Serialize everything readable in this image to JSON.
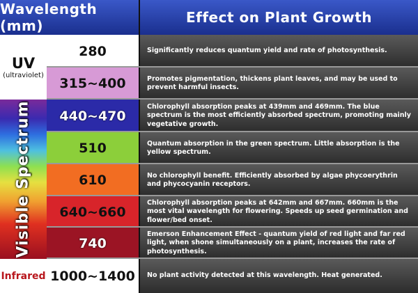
{
  "header": {
    "left": "Wavelength (mm)",
    "right": "Effect on Plant Growth"
  },
  "bands": {
    "uv_title": "UV",
    "uv_subtitle": "(ultraviolet)",
    "visible": "Visible Spectrum",
    "infrared": "Infrared"
  },
  "rows": [
    {
      "wavelength": "280",
      "color": "#ffffff",
      "effect": "Significantly reduces quantum yield and rate of photosynthesis."
    },
    {
      "wavelength": "315~400",
      "color": "#d79ad6",
      "effect": "Promotes pigmentation, thickens plant leaves, and may be used to prevent harmful insects."
    },
    {
      "wavelength": "440~470",
      "color": "#2b2aa8",
      "effect": "Chlorophyll absorption peaks at 439mm and 469mm. The blue spectrum is the most efficiently absorbed spectrum, promoting mainly vegetative growth."
    },
    {
      "wavelength": "510",
      "color": "#8ccf3a",
      "effect": "Quantum absorption in the green spectrum. Little absorption is the yellow spectrum."
    },
    {
      "wavelength": "610",
      "color": "#f26d22",
      "effect": "No chlorophyll benefit. Efficiently absorbed by algae phycoerythrin and phycocyanin receptors."
    },
    {
      "wavelength": "640~660",
      "color": "#d8242a",
      "effect": "Chlorophyll absorption peaks at 642mm and 667mm. 660mm is the most vital wavelength for flowering. Speeds up seed germination and flower/bed onset."
    },
    {
      "wavelength": "740",
      "color": "#9b1424",
      "effect": "Emerson Enhancement Effect - quantum yield of red light and far red light, when shone simultaneously on a plant, increases the rate of photosynthesis."
    },
    {
      "wavelength": "1000~1400",
      "color": "#ffffff",
      "effect": "No plant activity detected at this wavelength. Heat generated."
    }
  ]
}
